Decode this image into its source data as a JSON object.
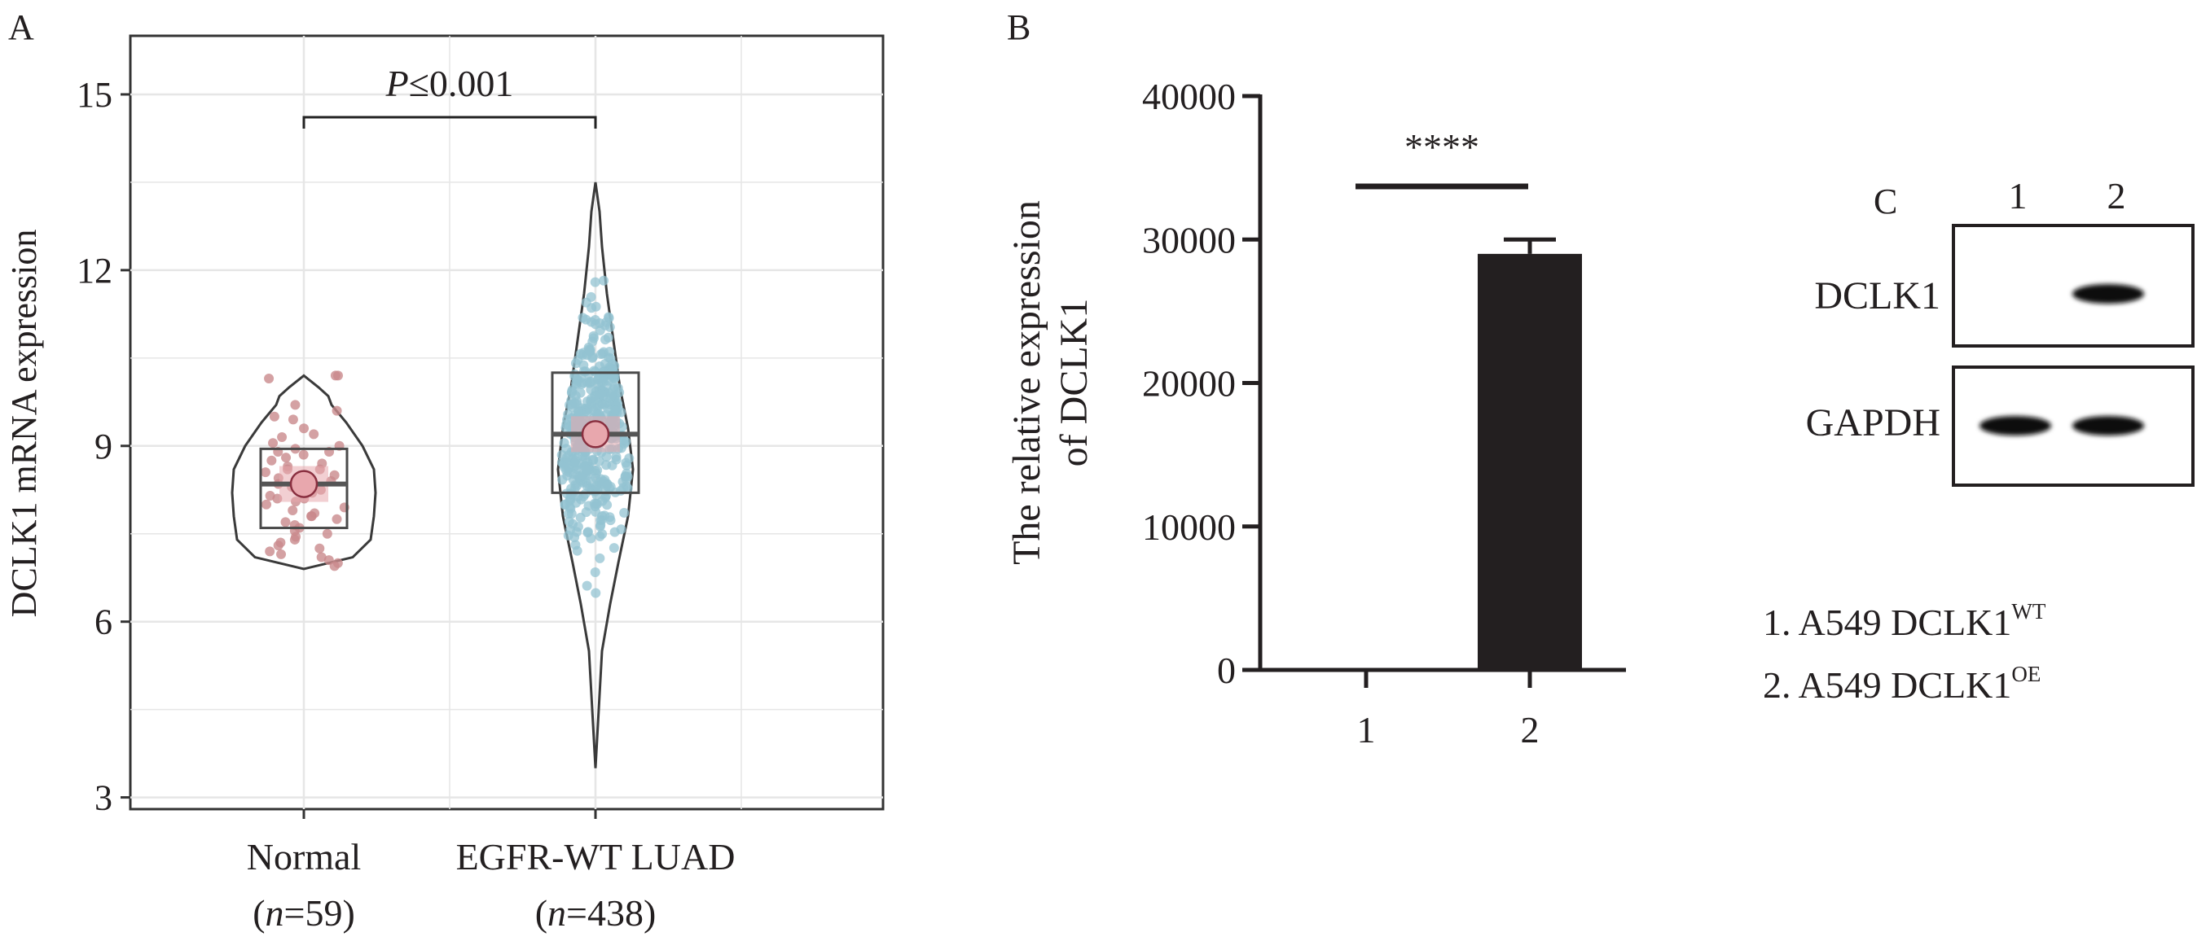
{
  "panels": {
    "a": "A",
    "b": "B",
    "c": "C"
  },
  "colors": {
    "normal_points": "#c98a8c",
    "luad_points": "#93c3d1",
    "mean_marker": "#e8a7ad",
    "bar_fill": "#231f20",
    "grid": "#e6e6e6"
  },
  "chart_data": [
    {
      "type": "violin",
      "ylabel": "DCLK1 mRNA expression",
      "ylim": [
        2.8,
        16.0
      ],
      "yticks": [
        3,
        6,
        9,
        12,
        15
      ],
      "grid": true,
      "annotation": {
        "prefix": "P",
        "text": "≤0.001"
      },
      "groups": [
        {
          "name": "Normal",
          "n_label_prefix": "(",
          "n_label_var": "n",
          "n_label_rest": "=59)",
          "n": 59,
          "q1": 7.6,
          "median": 8.35,
          "q3": 8.95,
          "mean": 8.35,
          "min": 6.9,
          "max": 10.2,
          "points": [
            10.2,
            10.2,
            10.15,
            9.7,
            9.6,
            9.5,
            9.45,
            9.3,
            9.2,
            9.15,
            9.05,
            9.0,
            8.95,
            8.9,
            8.85,
            8.8,
            8.75,
            8.7,
            8.65,
            8.6,
            8.55,
            8.5,
            8.45,
            8.4,
            8.4,
            8.35,
            8.3,
            8.3,
            8.25,
            8.2,
            8.15,
            8.1,
            8.05,
            8.0,
            7.95,
            7.9,
            7.85,
            7.8,
            7.75,
            7.7,
            7.65,
            7.6,
            7.55,
            7.5,
            7.45,
            7.4,
            7.35,
            7.3,
            7.25,
            7.2,
            7.15,
            7.1,
            7.05,
            7.0,
            6.95,
            8.9,
            8.6,
            7.8,
            8.1
          ]
        },
        {
          "name": "EGFR-WT LUAD",
          "n_label_prefix": "(",
          "n_label_var": "n",
          "n_label_rest": "=438)",
          "n": 438,
          "q1": 8.2,
          "median": 9.2,
          "q3": 10.25,
          "mean": 9.2,
          "min": 3.5,
          "max": 13.5
        }
      ]
    },
    {
      "type": "bar",
      "ylabel_lines": [
        "The relative expression",
        "of DCLK1"
      ],
      "categories": [
        "1",
        "2"
      ],
      "values": [
        0,
        29000
      ],
      "error": [
        0,
        1000
      ],
      "ylim": [
        0,
        40000
      ],
      "yticks": [
        "0",
        "10000",
        "20000",
        "30000",
        "40000"
      ],
      "significance": "****"
    },
    {
      "type": "western-blot",
      "lanes": [
        "1",
        "2"
      ],
      "rows": [
        {
          "label": "DCLK1",
          "band_intensity": [
            0,
            1
          ]
        },
        {
          "label": "GAPDH",
          "band_intensity": [
            1,
            1
          ]
        }
      ],
      "legend": [
        {
          "text": "1. A549 DCLK1",
          "sup": "WT"
        },
        {
          "text": "2. A549 DCLK1",
          "sup": "OE"
        }
      ]
    }
  ]
}
